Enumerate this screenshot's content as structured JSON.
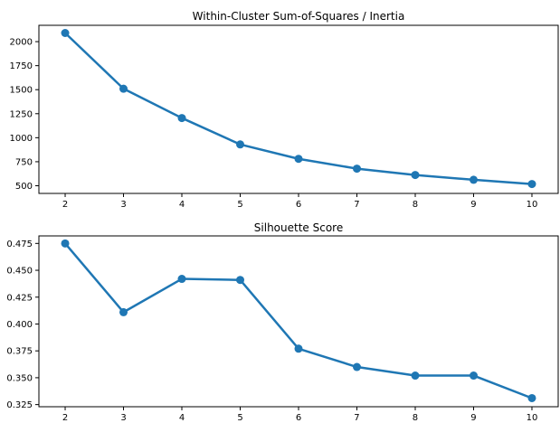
{
  "chart_data": [
    {
      "type": "line",
      "title": "Within-Cluster Sum-of-Squares / Inertia",
      "xlabel": "",
      "ylabel": "",
      "x": [
        2,
        3,
        4,
        5,
        6,
        7,
        8,
        9,
        10
      ],
      "values": [
        2090,
        1510,
        1205,
        930,
        780,
        678,
        612,
        562,
        518
      ],
      "xlim": [
        1.55,
        10.45
      ],
      "ylim": [
        420,
        2170
      ],
      "xticks": [
        2,
        3,
        4,
        5,
        6,
        7,
        8,
        9,
        10
      ],
      "yticks": [
        500,
        750,
        1000,
        1250,
        1500,
        1750,
        2000
      ],
      "color": "#1f77b4",
      "grid": false,
      "legend": null
    },
    {
      "type": "line",
      "title": "Silhouette Score",
      "xlabel": "",
      "ylabel": "",
      "x": [
        2,
        3,
        4,
        5,
        6,
        7,
        8,
        9,
        10
      ],
      "values": [
        0.475,
        0.411,
        0.442,
        0.441,
        0.377,
        0.36,
        0.352,
        0.352,
        0.331
      ],
      "xlim": [
        1.55,
        10.45
      ],
      "ylim": [
        0.323,
        0.482
      ],
      "xticks": [
        2,
        3,
        4,
        5,
        6,
        7,
        8,
        9,
        10
      ],
      "yticks": [
        0.325,
        0.35,
        0.375,
        0.4,
        0.425,
        0.45,
        0.475
      ],
      "ytick_labels": [
        "0.325",
        "0.350",
        "0.375",
        "0.400",
        "0.425",
        "0.450",
        "0.475"
      ],
      "color": "#1f77b4",
      "grid": false,
      "legend": null
    }
  ]
}
